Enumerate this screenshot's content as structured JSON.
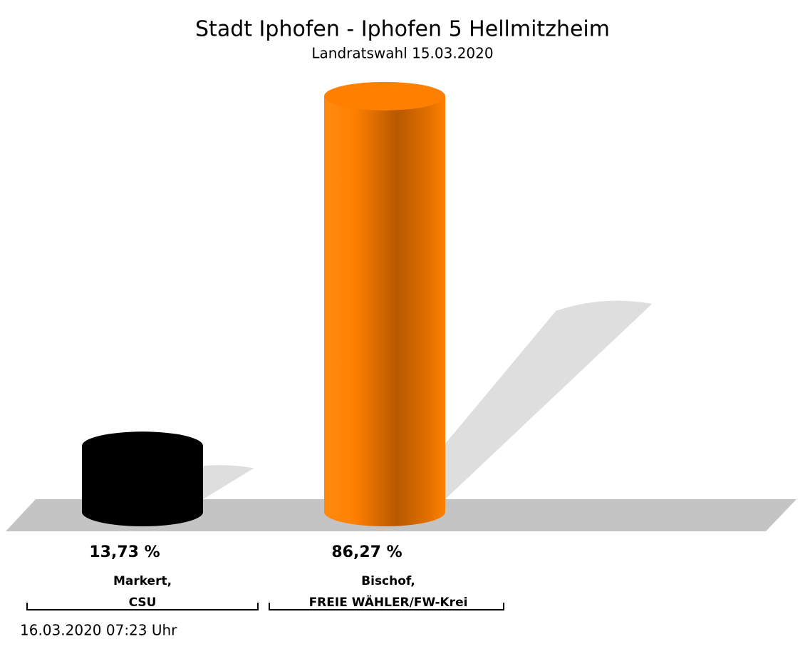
{
  "chart_data": {
    "type": "bar3d",
    "title": "Stadt Iphofen - Iphofen 5 Hellmitzheim",
    "subtitle": "Landratswahl 15.03.2020",
    "categories": [
      [
        "Markert,",
        "CSU"
      ],
      [
        "Bischof,",
        "FREIE WÄHLER/FW-Krei"
      ]
    ],
    "values": [
      13.73,
      86.27
    ],
    "value_labels": [
      "13,73 %",
      "86,27 %"
    ],
    "colors": [
      "#000000",
      "#ff7f00"
    ],
    "footer": "16.03.2020 07:23 Uhr"
  }
}
